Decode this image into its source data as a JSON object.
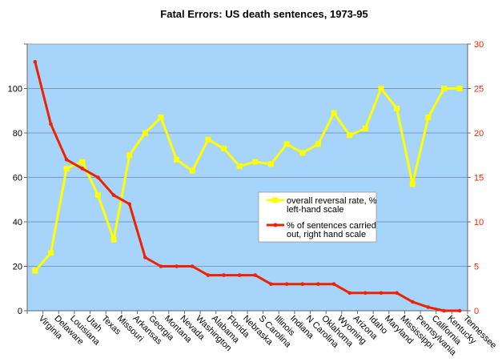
{
  "chart_data": {
    "type": "line",
    "title": "Fatal Errors:  US death sentences, 1973-95",
    "xlabel": "",
    "ylabel": "",
    "ylim": [
      0,
      120
    ],
    "y2lim": [
      0,
      30
    ],
    "left_ticks": [
      "0",
      "20",
      "40",
      "60",
      "80",
      "100"
    ],
    "right_ticks": [
      "0",
      "5",
      "10",
      "15",
      "20",
      "25",
      "30"
    ],
    "grid": true,
    "legend_position": "center-right",
    "categories": [
      "Virginia",
      "Delaware",
      "Louisiana",
      "Utah",
      "Texas",
      "Missouri",
      "Arkansas",
      "Georgia",
      "Montana",
      "Nevada",
      "Washington",
      "Alabama",
      "Florida",
      "Nebraska",
      "S Carolina",
      "Illinois",
      "Indiana",
      "N Carolina",
      "Oklahoma",
      "Wyoming",
      "Arizona",
      "Idaho",
      "Maryland",
      "Mississippi",
      "Pennsylvania",
      "California",
      "Kentucky",
      "Tennessee"
    ],
    "series": [
      {
        "name": "overall reversal rate, %",
        "name2": "left-hand scale",
        "axis": "left",
        "color": "#ffff00",
        "values": [
          18,
          26,
          64,
          67,
          52,
          32,
          70,
          80,
          87,
          68,
          63,
          77,
          73,
          65,
          67,
          66,
          75,
          71,
          75,
          89,
          79,
          82,
          100,
          91,
          57,
          87,
          100,
          100
        ]
      },
      {
        "name": "% of  sentences carried",
        "name2": "out, right hand scale",
        "axis": "right",
        "color": "#ee2200",
        "values": [
          28,
          21,
          17,
          16,
          15,
          13,
          12,
          6,
          5,
          5,
          5,
          4,
          4,
          4,
          4,
          3,
          3,
          3,
          3,
          3,
          2,
          2,
          2,
          2,
          1,
          0.4,
          0,
          0
        ]
      }
    ]
  },
  "colors": {
    "plot_bg": "#a6d4fa",
    "grid": "#6a8aa8",
    "right_axis_text": "#ff2200"
  }
}
